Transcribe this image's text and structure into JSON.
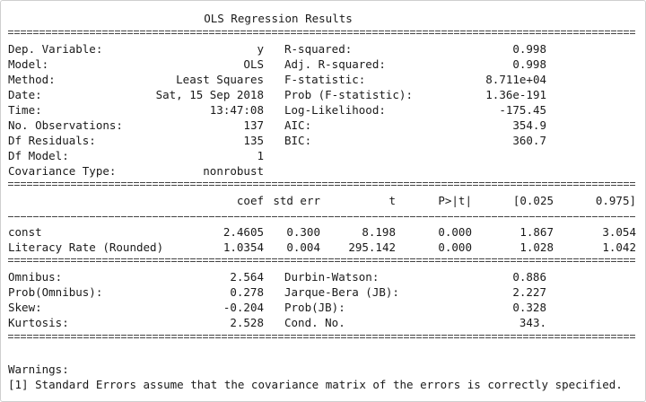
{
  "title": "OLS Regression Results",
  "model_info": [
    {
      "label": "Dep. Variable:",
      "value": "y"
    },
    {
      "label": "Model:",
      "value": "OLS"
    },
    {
      "label": "Method:",
      "value": "Least Squares"
    },
    {
      "label": "Date:",
      "value": "Sat, 15 Sep 2018"
    },
    {
      "label": "Time:",
      "value": "13:47:08"
    },
    {
      "label": "No. Observations:",
      "value": "137"
    },
    {
      "label": "Df Residuals:",
      "value": "135"
    },
    {
      "label": "Df Model:",
      "value": "1"
    },
    {
      "label": "Covariance Type:",
      "value": "nonrobust"
    }
  ],
  "fit_stats": [
    {
      "label": "R-squared:",
      "value": "0.998"
    },
    {
      "label": "Adj. R-squared:",
      "value": "0.998"
    },
    {
      "label": "F-statistic:",
      "value": "8.711e+04"
    },
    {
      "label": "Prob (F-statistic):",
      "value": "1.36e-191"
    },
    {
      "label": "Log-Likelihood:",
      "value": "-175.45"
    },
    {
      "label": "AIC:",
      "value": "354.9"
    },
    {
      "label": "BIC:",
      "value": "360.7"
    }
  ],
  "coef_headers": [
    "coef",
    "std err",
    "t",
    "P>|t|",
    "[0.025",
    "0.975]"
  ],
  "coef_rows": [
    {
      "name": "const",
      "values": [
        "2.4605",
        "0.300",
        "8.198",
        "0.000",
        "1.867",
        "3.054"
      ]
    },
    {
      "name": "Literacy Rate (Rounded)",
      "values": [
        "1.0354",
        "0.004",
        "295.142",
        "0.000",
        "1.028",
        "1.042"
      ]
    }
  ],
  "resid_left": [
    {
      "label": "Omnibus:",
      "value": "2.564"
    },
    {
      "label": "Prob(Omnibus):",
      "value": "0.278"
    },
    {
      "label": "Skew:",
      "value": "-0.204"
    },
    {
      "label": "Kurtosis:",
      "value": "2.528"
    }
  ],
  "resid_right": [
    {
      "label": "Durbin-Watson:",
      "value": "0.886"
    },
    {
      "label": "Jarque-Bera (JB):",
      "value": "2.227"
    },
    {
      "label": "Prob(JB):",
      "value": "0.328"
    },
    {
      "label": "Cond. No.",
      "value": "343."
    }
  ],
  "warnings_heading": "Warnings:",
  "warnings": [
    "[1] Standard Errors assume that the covariance matrix of the errors is correctly specified."
  ]
}
